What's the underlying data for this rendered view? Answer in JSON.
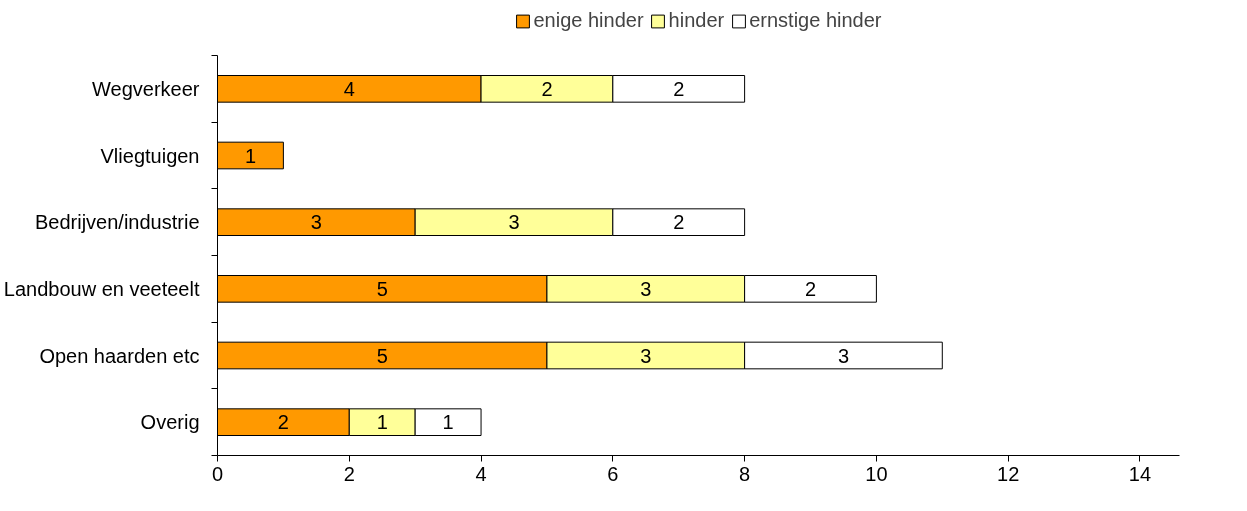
{
  "chart_data": {
    "type": "bar",
    "orientation": "horizontal",
    "stacked": true,
    "categories": [
      "Wegverkeer",
      "Vliegtuigen",
      "Bedrijven/industrie",
      "Landbouw en veeteelt",
      "Open haarden etc",
      "Overig"
    ],
    "series": [
      {
        "name": "enige hinder",
        "color": "#ff9900",
        "values": [
          4,
          1,
          3,
          5,
          5,
          2
        ]
      },
      {
        "name": "hinder",
        "color": "#ffff99",
        "values": [
          2,
          null,
          3,
          3,
          3,
          1
        ]
      },
      {
        "name": "ernstige hinder",
        "color": "#ffffff",
        "values": [
          2,
          null,
          2,
          2,
          3,
          1
        ]
      }
    ],
    "xlim": [
      0,
      14.6
    ],
    "xticks": [
      0,
      2,
      4,
      6,
      8,
      10,
      12,
      14
    ],
    "grid": false,
    "legend": "top",
    "data_labels": true
  }
}
